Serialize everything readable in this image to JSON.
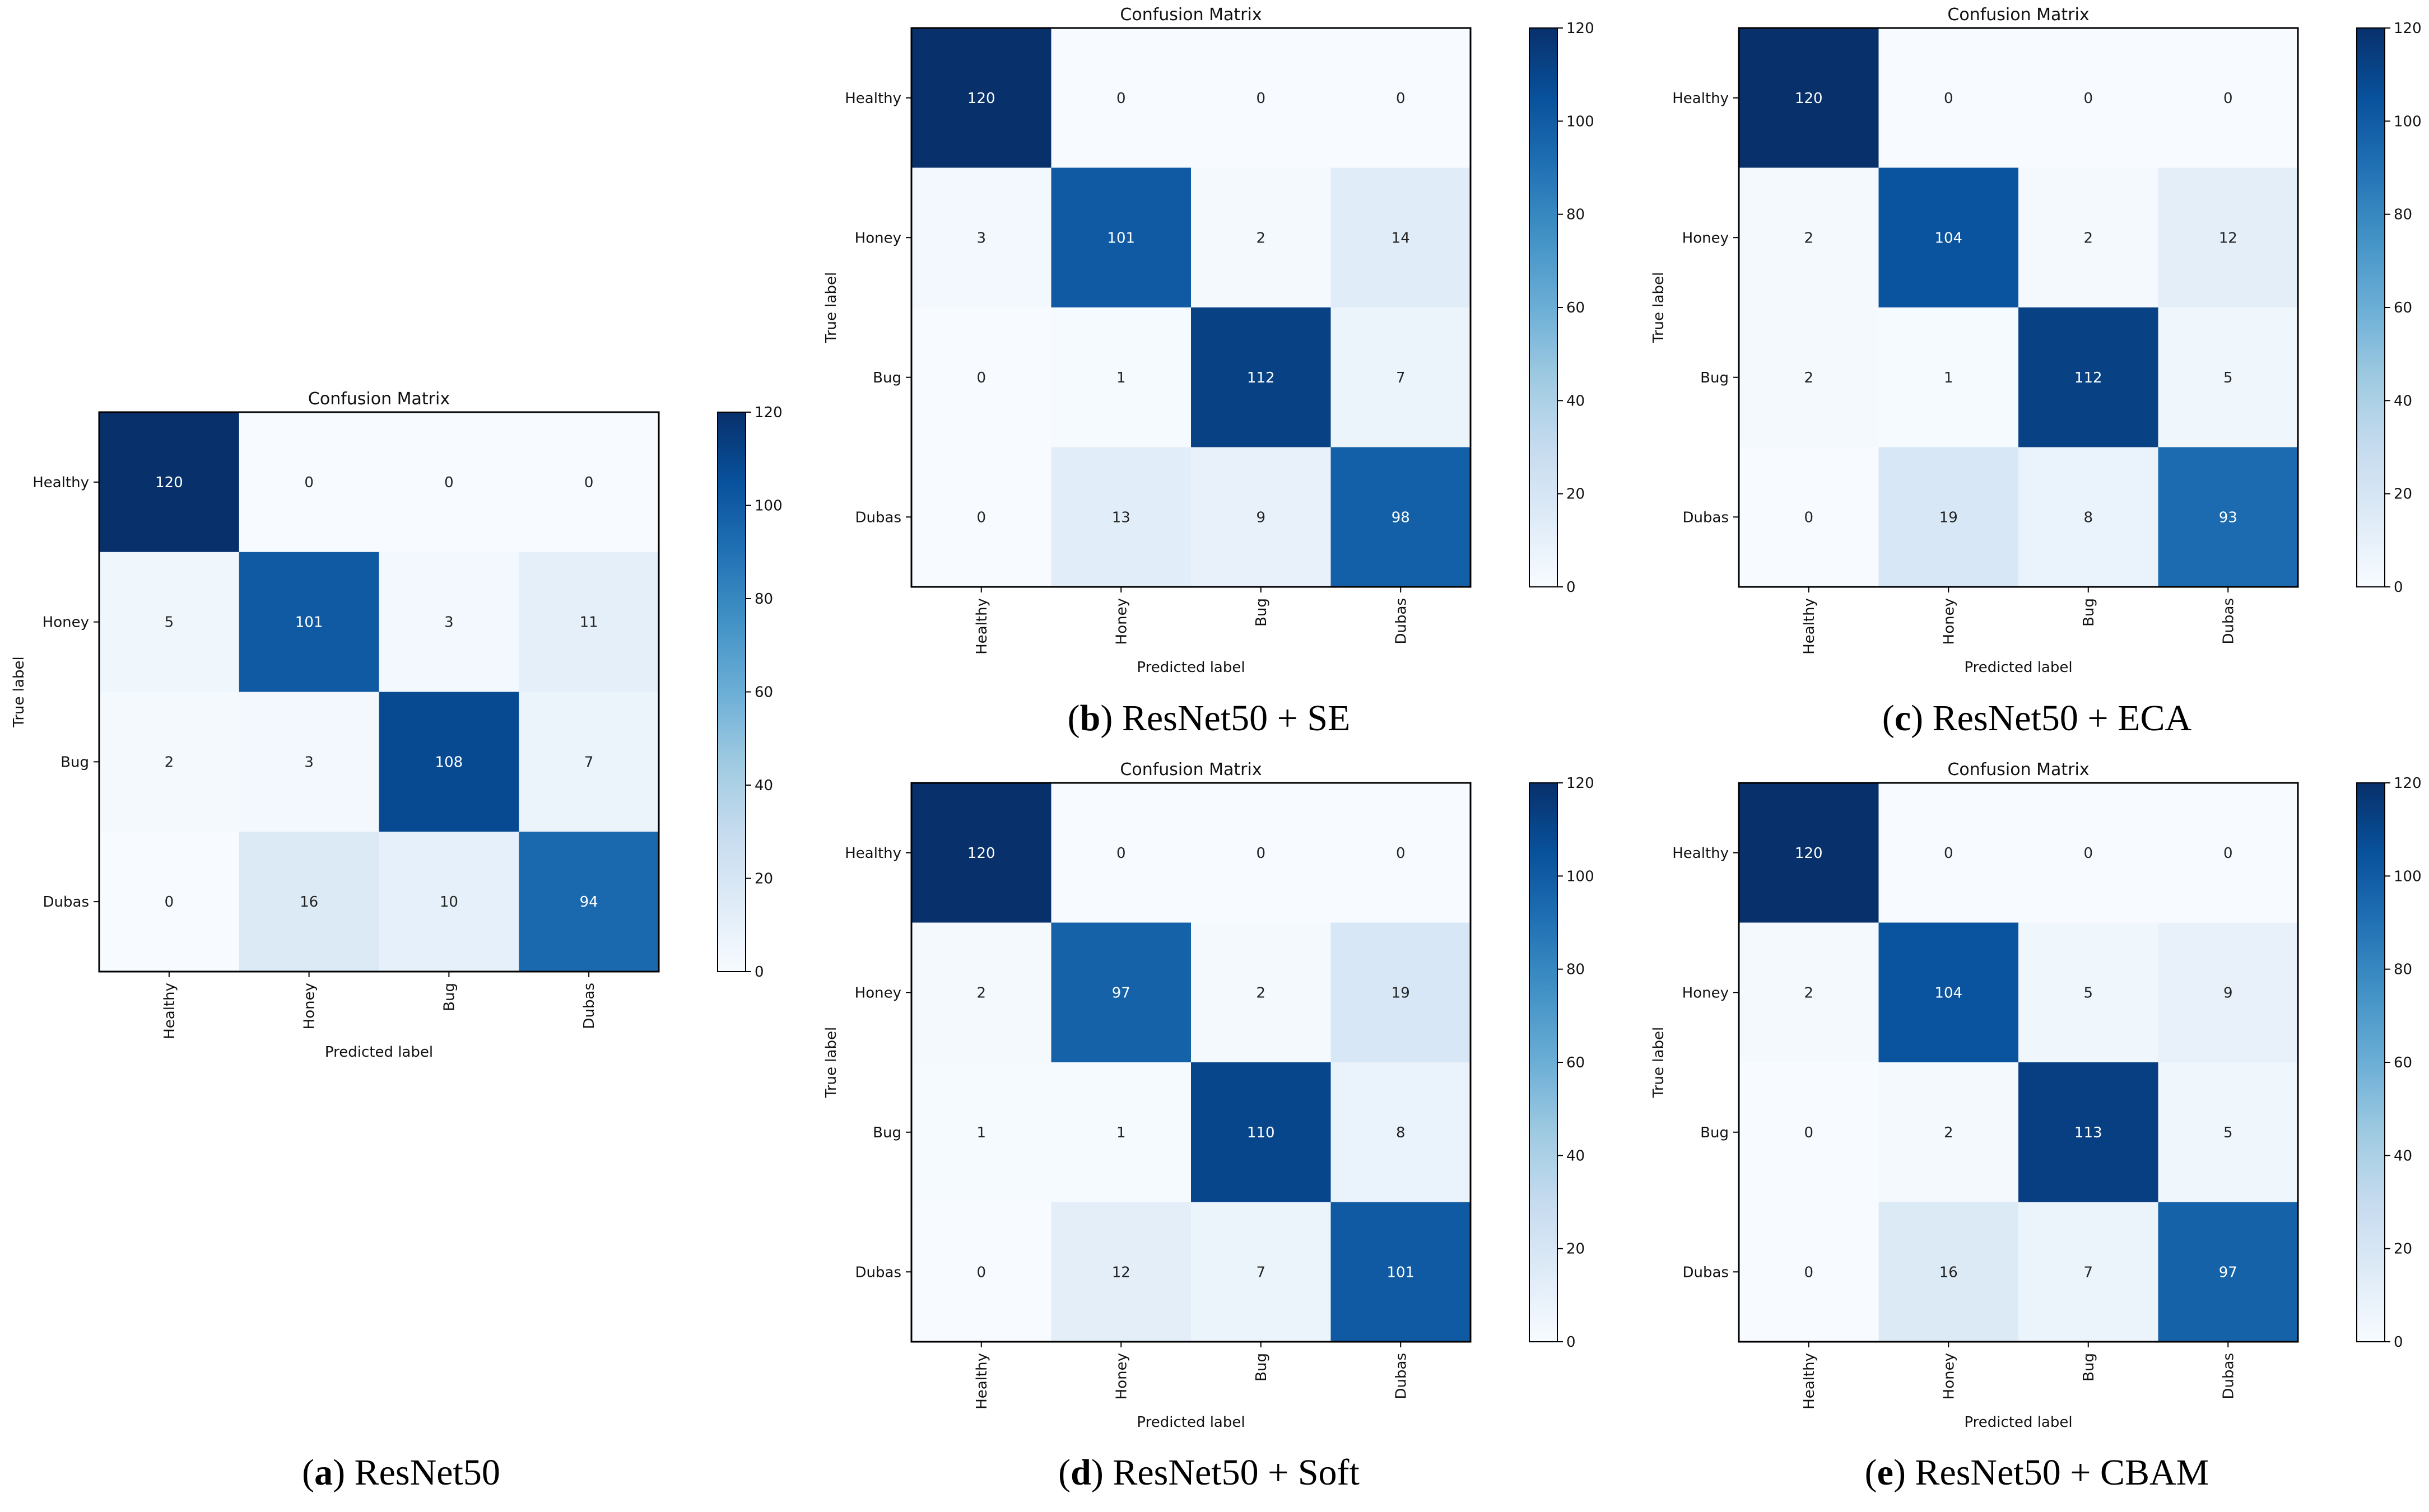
{
  "chart_data": [
    {
      "type": "heatmap",
      "panel": "a",
      "title": "Confusion Matrix",
      "xlabel": "Predicted label",
      "ylabel": "True label",
      "classes": [
        "Healthy",
        "Honey",
        "Bug",
        "Dubas"
      ],
      "matrix": [
        [
          120,
          0,
          0,
          0
        ],
        [
          5,
          101,
          3,
          11
        ],
        [
          2,
          3,
          108,
          7
        ],
        [
          0,
          16,
          10,
          94
        ]
      ],
      "colorbar": {
        "range": [
          0,
          120
        ],
        "ticks": [
          "0",
          "20",
          "40",
          "60",
          "80",
          "100",
          "120"
        ]
      },
      "caption": {
        "letter": "a",
        "name": "ResNet50"
      }
    },
    {
      "type": "heatmap",
      "panel": "b",
      "title": "Confusion Matrix",
      "xlabel": "Predicted label",
      "ylabel": "True label",
      "classes": [
        "Healthy",
        "Honey",
        "Bug",
        "Dubas"
      ],
      "matrix": [
        [
          120,
          0,
          0,
          0
        ],
        [
          3,
          101,
          2,
          14
        ],
        [
          0,
          1,
          112,
          7
        ],
        [
          0,
          13,
          9,
          98
        ]
      ],
      "colorbar": {
        "range": [
          0,
          120
        ],
        "ticks": [
          "0",
          "20",
          "40",
          "60",
          "80",
          "100",
          "120"
        ]
      },
      "caption": {
        "letter": "b",
        "name": "ResNet50 + SE"
      }
    },
    {
      "type": "heatmap",
      "panel": "c",
      "title": "Confusion Matrix",
      "xlabel": "Predicted label",
      "ylabel": "True label",
      "classes": [
        "Healthy",
        "Honey",
        "Bug",
        "Dubas"
      ],
      "matrix": [
        [
          120,
          0,
          0,
          0
        ],
        [
          2,
          104,
          2,
          12
        ],
        [
          2,
          1,
          112,
          5
        ],
        [
          0,
          19,
          8,
          93
        ]
      ],
      "colorbar": {
        "range": [
          0,
          120
        ],
        "ticks": [
          "0",
          "20",
          "40",
          "60",
          "80",
          "100",
          "120"
        ]
      },
      "caption": {
        "letter": "c",
        "name": "ResNet50 + ECA"
      }
    },
    {
      "type": "heatmap",
      "panel": "d",
      "title": "Confusion Matrix",
      "xlabel": "Predicted label",
      "ylabel": "True label",
      "classes": [
        "Healthy",
        "Honey",
        "Bug",
        "Dubas"
      ],
      "matrix": [
        [
          120,
          0,
          0,
          0
        ],
        [
          2,
          97,
          2,
          19
        ],
        [
          1,
          1,
          110,
          8
        ],
        [
          0,
          12,
          7,
          101
        ]
      ],
      "colorbar": {
        "range": [
          0,
          120
        ],
        "ticks": [
          "0",
          "20",
          "40",
          "60",
          "80",
          "100",
          "120"
        ]
      },
      "caption": {
        "letter": "d",
        "name": "ResNet50 + Soft"
      }
    },
    {
      "type": "heatmap",
      "panel": "e",
      "title": "Confusion Matrix",
      "xlabel": "Predicted label",
      "ylabel": "True label",
      "classes": [
        "Healthy",
        "Honey",
        "Bug",
        "Dubas"
      ],
      "matrix": [
        [
          120,
          0,
          0,
          0
        ],
        [
          2,
          104,
          5,
          9
        ],
        [
          0,
          2,
          113,
          5
        ],
        [
          0,
          16,
          7,
          97
        ]
      ],
      "colorbar": {
        "range": [
          0,
          120
        ],
        "ticks": [
          "0",
          "20",
          "40",
          "60",
          "80",
          "100",
          "120"
        ]
      },
      "caption": {
        "letter": "e",
        "name": "ResNet50 + CBAM"
      }
    }
  ]
}
